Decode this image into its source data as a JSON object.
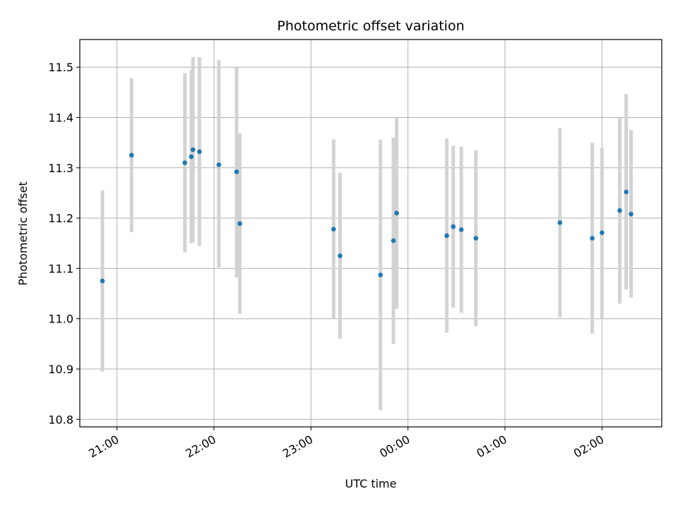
{
  "chart_data": {
    "type": "scatter",
    "title": "Photometric offset variation",
    "xlabel": "UTC time",
    "ylabel": "Photometric offset",
    "ylim": [
      10.785,
      11.555
    ],
    "xlim": [
      "20:37",
      "02:37"
    ],
    "grid": true,
    "x_ticks": [
      "21:00",
      "22:00",
      "23:00",
      "00:00",
      "01:00",
      "02:00"
    ],
    "y_ticks": [
      "10.8",
      "10.9",
      "11.0",
      "11.1",
      "11.2",
      "11.3",
      "11.4",
      "11.5"
    ],
    "colors": {
      "point": "#1f77b4",
      "errorbar": "#d3d3d3",
      "grid": "#b0b0b0"
    },
    "series": [
      {
        "points": [
          {
            "time": "20:51",
            "y": 11.075,
            "yerr": [
              10.895,
              11.255
            ]
          },
          {
            "time": "21:09",
            "y": 11.325,
            "yerr": [
              11.172,
              11.478
            ]
          },
          {
            "time": "21:42",
            "y": 11.31,
            "yerr": [
              11.132,
              11.488
            ]
          },
          {
            "time": "21:46",
            "y": 11.322,
            "yerr": [
              11.15,
              11.494
            ]
          },
          {
            "time": "21:47",
            "y": 11.336,
            "yerr": [
              11.152,
              11.52
            ]
          },
          {
            "time": "21:51",
            "y": 11.332,
            "yerr": [
              11.145,
              11.52
            ]
          },
          {
            "time": "22:03",
            "y": 11.306,
            "yerr": [
              11.102,
              11.514
            ]
          },
          {
            "time": "22:14",
            "y": 11.292,
            "yerr": [
              11.082,
              11.5
            ]
          },
          {
            "time": "22:16",
            "y": 11.189,
            "yerr": [
              11.01,
              11.368
            ]
          },
          {
            "time": "23:14",
            "y": 11.178,
            "yerr": [
              11.0,
              11.356
            ]
          },
          {
            "time": "23:18",
            "y": 11.125,
            "yerr": [
              10.96,
              11.29
            ]
          },
          {
            "time": "23:43",
            "y": 11.087,
            "yerr": [
              10.818,
              11.356
            ]
          },
          {
            "time": "23:51",
            "y": 11.155,
            "yerr": [
              10.95,
              11.36
            ]
          },
          {
            "time": "23:53",
            "y": 11.21,
            "yerr": [
              11.02,
              11.4
            ]
          },
          {
            "time": "00:24",
            "y": 11.165,
            "yerr": [
              10.972,
              11.358
            ]
          },
          {
            "time": "00:28",
            "y": 11.183,
            "yerr": [
              11.022,
              11.344
            ]
          },
          {
            "time": "00:33",
            "y": 11.177,
            "yerr": [
              11.012,
              11.342
            ]
          },
          {
            "time": "00:42",
            "y": 11.16,
            "yerr": [
              10.985,
              11.335
            ]
          },
          {
            "time": "01:34",
            "y": 11.191,
            "yerr": [
              11.003,
              11.379
            ]
          },
          {
            "time": "01:54",
            "y": 11.16,
            "yerr": [
              10.97,
              11.35
            ]
          },
          {
            "time": "02:00",
            "y": 11.171,
            "yerr": [
              11.0,
              11.34
            ]
          },
          {
            "time": "02:11",
            "y": 11.215,
            "yerr": [
              11.03,
              11.4
            ]
          },
          {
            "time": "02:15",
            "y": 11.252,
            "yerr": [
              11.058,
              11.447
            ]
          },
          {
            "time": "02:18",
            "y": 11.208,
            "yerr": [
              11.042,
              11.375
            ]
          }
        ]
      }
    ]
  }
}
